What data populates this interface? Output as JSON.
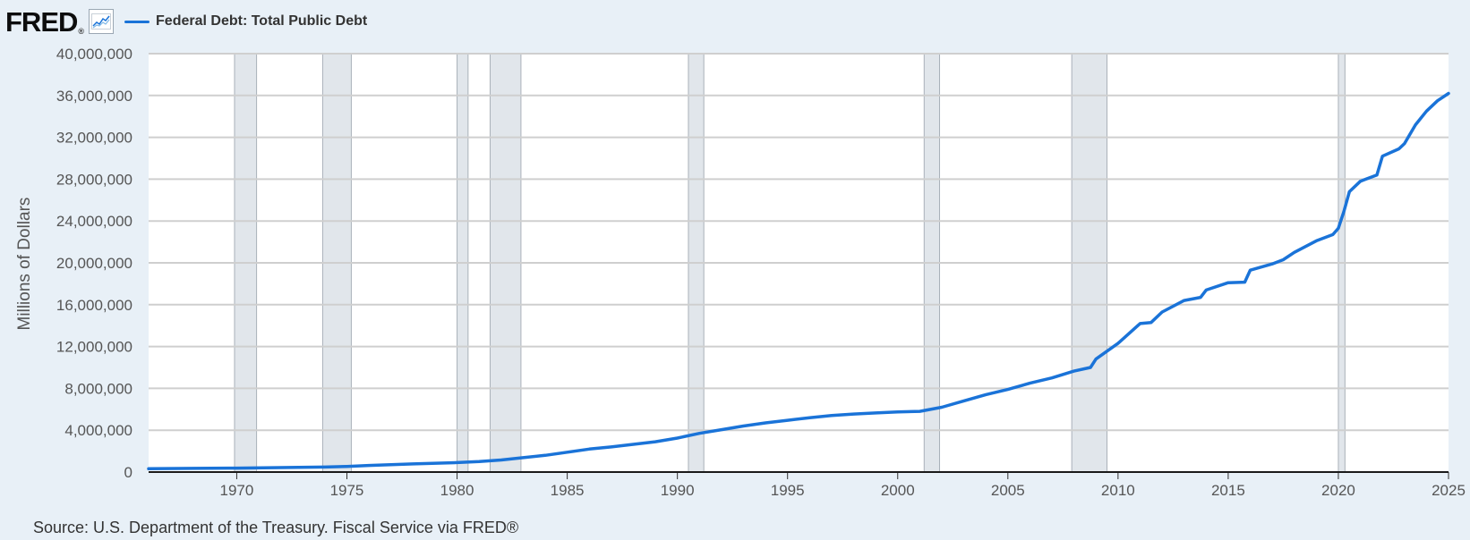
{
  "header": {
    "logo_text": "FRED",
    "logo_mark": "®",
    "logo_icon": "chart-line-icon",
    "legend_label": "Federal Debt: Total Public Debt"
  },
  "source_text": "Source: U.S. Department of the Treasury. Fiscal Service via FRED®",
  "colors": {
    "series": "#1a73d8",
    "recession": "#e1e6eb",
    "grid": "#cfcfcf",
    "background": "#e8f0f7",
    "plot": "#ffffff"
  },
  "chart_data": {
    "type": "line",
    "title": "",
    "xlabel": "",
    "ylabel": "Millions of Dollars",
    "xlim": [
      1966,
      2025
    ],
    "ylim": [
      0,
      40000000
    ],
    "grid": true,
    "legend_placement": "top-left",
    "x_ticks": [
      "1970",
      "1975",
      "1980",
      "1985",
      "1990",
      "1995",
      "2000",
      "2005",
      "2010",
      "2015",
      "2020",
      "2025"
    ],
    "y_ticks": [
      "0",
      "4,000,000",
      "8,000,000",
      "12,000,000",
      "16,000,000",
      "20,000,000",
      "24,000,000",
      "28,000,000",
      "32,000,000",
      "36,000,000",
      "40,000,000"
    ],
    "recessions": [
      [
        1969.9,
        1970.9
      ],
      [
        1973.9,
        1975.2
      ],
      [
        1980.0,
        1980.5
      ],
      [
        1981.5,
        1982.9
      ],
      [
        1990.5,
        1991.2
      ],
      [
        2001.2,
        2001.9
      ],
      [
        2007.9,
        2009.5
      ],
      [
        2020.0,
        2020.3
      ]
    ],
    "series": [
      {
        "name": "Federal Debt: Total Public Debt",
        "x": [
          1966,
          1968,
          1970,
          1972,
          1974,
          1975,
          1976,
          1978,
          1980,
          1981,
          1982,
          1983,
          1984,
          1985,
          1986,
          1987,
          1988,
          1989,
          1990,
          1991,
          1992,
          1993,
          1994,
          1995,
          1996,
          1997,
          1998,
          1999,
          2000,
          2001,
          2002,
          2003,
          2004,
          2005,
          2006,
          2007,
          2008,
          2008.75,
          2009,
          2010,
          2011,
          2011.5,
          2012,
          2013,
          2013.75,
          2014,
          2015,
          2015.75,
          2016,
          2017,
          2017.5,
          2018,
          2019,
          2019.75,
          2020,
          2020.25,
          2020.5,
          2021,
          2021.75,
          2022,
          2022.75,
          2023,
          2023.5,
          2024,
          2024.5,
          2025
        ],
        "values": [
          320000,
          350000,
          380000,
          430000,
          480000,
          540000,
          630000,
          780000,
          910000,
          1000000,
          1150000,
          1380000,
          1600000,
          1900000,
          2200000,
          2400000,
          2650000,
          2900000,
          3250000,
          3700000,
          4050000,
          4400000,
          4700000,
          4950000,
          5200000,
          5400000,
          5550000,
          5650000,
          5750000,
          5800000,
          6200000,
          6800000,
          7400000,
          7900000,
          8500000,
          9000000,
          9650000,
          10000000,
          10800000,
          12300000,
          14200000,
          14300000,
          15300000,
          16400000,
          16700000,
          17400000,
          18100000,
          18150000,
          19300000,
          19900000,
          20300000,
          21000000,
          22100000,
          22700000,
          23300000,
          24900000,
          26800000,
          27800000,
          28400000,
          30200000,
          30900000,
          31400000,
          33200000,
          34500000,
          35500000,
          36200000
        ]
      }
    ]
  }
}
